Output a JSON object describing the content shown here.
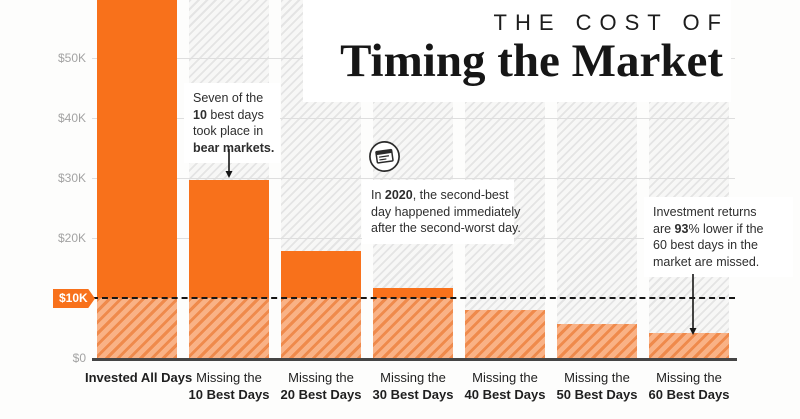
{
  "title": {
    "kicker": "THE COST OF",
    "main": "Timing the Market"
  },
  "colors": {
    "bar_solid": "#f8711b",
    "bar_hatch_dark": "#ef8a4c",
    "bar_hatch_light": "#f9b286",
    "background_hatch": "#e4e4e4",
    "threshold_badge": "#f8711b",
    "axis_text": "#a3a3a3",
    "dashed_line": "#161616"
  },
  "y_axis": {
    "tick_labels": [
      {
        "text": "$50K",
        "value": 50000
      },
      {
        "text": "$40K",
        "value": 40000
      },
      {
        "text": "$30K",
        "value": 30000
      },
      {
        "text": "$20K",
        "value": 20000
      },
      {
        "text": "$0",
        "value": 0
      }
    ],
    "threshold_label": {
      "text": "$10K",
      "value": 10000
    }
  },
  "chart_data": {
    "type": "bar",
    "title": "The Cost of Timing the Market",
    "categories": [
      "Invested All Days",
      "Missing the 10 Best Days",
      "Missing the 20 Best Days",
      "Missing the 30 Best Days",
      "Missing the 40 Best Days",
      "Missing the 50 Best Days",
      "Missing the 60 Best Days"
    ],
    "values": [
      64800,
      29700,
      17800,
      11700,
      8000,
      5700,
      4200
    ],
    "ylim": [
      0,
      60000
    ],
    "gridline_values": [
      20000,
      30000,
      40000,
      50000
    ],
    "threshold_value": 10000,
    "legend": "none",
    "grid": "on",
    "xlabels": [
      {
        "lines": [
          {
            "t": "Invested All Days",
            "b": true
          }
        ]
      },
      {
        "lines": [
          {
            "t": "Missing the"
          },
          {
            "t": "10 Best Days",
            "b": true
          }
        ]
      },
      {
        "lines": [
          {
            "t": "Missing the"
          },
          {
            "t": "20 Best Days",
            "b": true
          }
        ]
      },
      {
        "lines": [
          {
            "t": "Missing the"
          },
          {
            "t": "30 Best Days",
            "b": true
          }
        ]
      },
      {
        "lines": [
          {
            "t": "Missing the"
          },
          {
            "t": "40 Best Days",
            "b": true
          }
        ]
      },
      {
        "lines": [
          {
            "t": "Missing the"
          },
          {
            "t": "50 Best Days",
            "b": true
          }
        ]
      },
      {
        "lines": [
          {
            "t": "Missing the"
          },
          {
            "t": "60 Best Days",
            "b": true
          }
        ]
      }
    ]
  },
  "callouts": {
    "bear": {
      "lines": [
        [
          {
            "t": "Seven of the"
          }
        ],
        [
          {
            "t": "10",
            "b": true
          },
          {
            "t": " best days"
          }
        ],
        [
          {
            "t": "took place in"
          }
        ],
        [
          {
            "t": "bear markets.",
            "b": true
          }
        ]
      ]
    },
    "y2020": {
      "lines": [
        [
          {
            "t": "In "
          },
          {
            "t": "2020",
            "b": true
          },
          {
            "t": ", the second-best"
          }
        ],
        [
          {
            "t": "day happened immediately"
          }
        ],
        [
          {
            "t": "after the second-worst day."
          }
        ]
      ]
    },
    "returns": {
      "lines": [
        [
          {
            "t": "Investment returns"
          }
        ],
        [
          {
            "t": "are "
          },
          {
            "t": "93",
            "b": true
          },
          {
            "t": "% lower if the"
          }
        ],
        [
          {
            "t": "60 best days in the"
          }
        ],
        [
          {
            "t": "market are missed."
          }
        ]
      ]
    }
  },
  "icons": {
    "news_icon": "newspaper-calendar-icon"
  }
}
